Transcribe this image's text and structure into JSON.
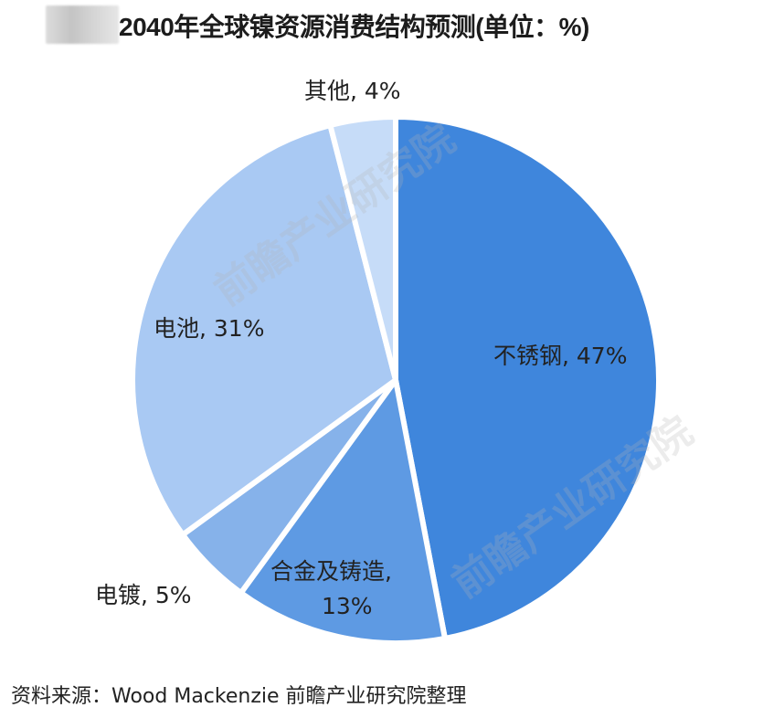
{
  "header": {
    "title": "2040年全球镍资源消费结构预测(单位：%)"
  },
  "footer": {
    "source": "资料来源：Wood Mackenzie 前瞻产业研究院整理"
  },
  "watermark": {
    "text": "前瞻产业研究院"
  },
  "chart_data": {
    "type": "pie",
    "title": "2040年全球镍资源消费结构预测(单位：%)",
    "unit": "%",
    "start_angle": "12 o'clock, clockwise",
    "categories": [
      "不锈钢",
      "合金及铸造",
      "电镀",
      "电池",
      "其他"
    ],
    "values": [
      47,
      13,
      5,
      31,
      4
    ],
    "colors": [
      "#3f86dc",
      "#5e9ae3",
      "#86b2ea",
      "#a9c9f3",
      "#c6dcf8"
    ],
    "labels": {
      "stainless": "不锈钢, 47%",
      "alloy_line1": "合金及铸造,",
      "alloy_line2": "13%",
      "plating": "电镀, 5%",
      "battery": "电池, 31%",
      "other": "其他, 4%"
    },
    "source": "资料来源：Wood Mackenzie 前瞻产业研究院整理"
  }
}
